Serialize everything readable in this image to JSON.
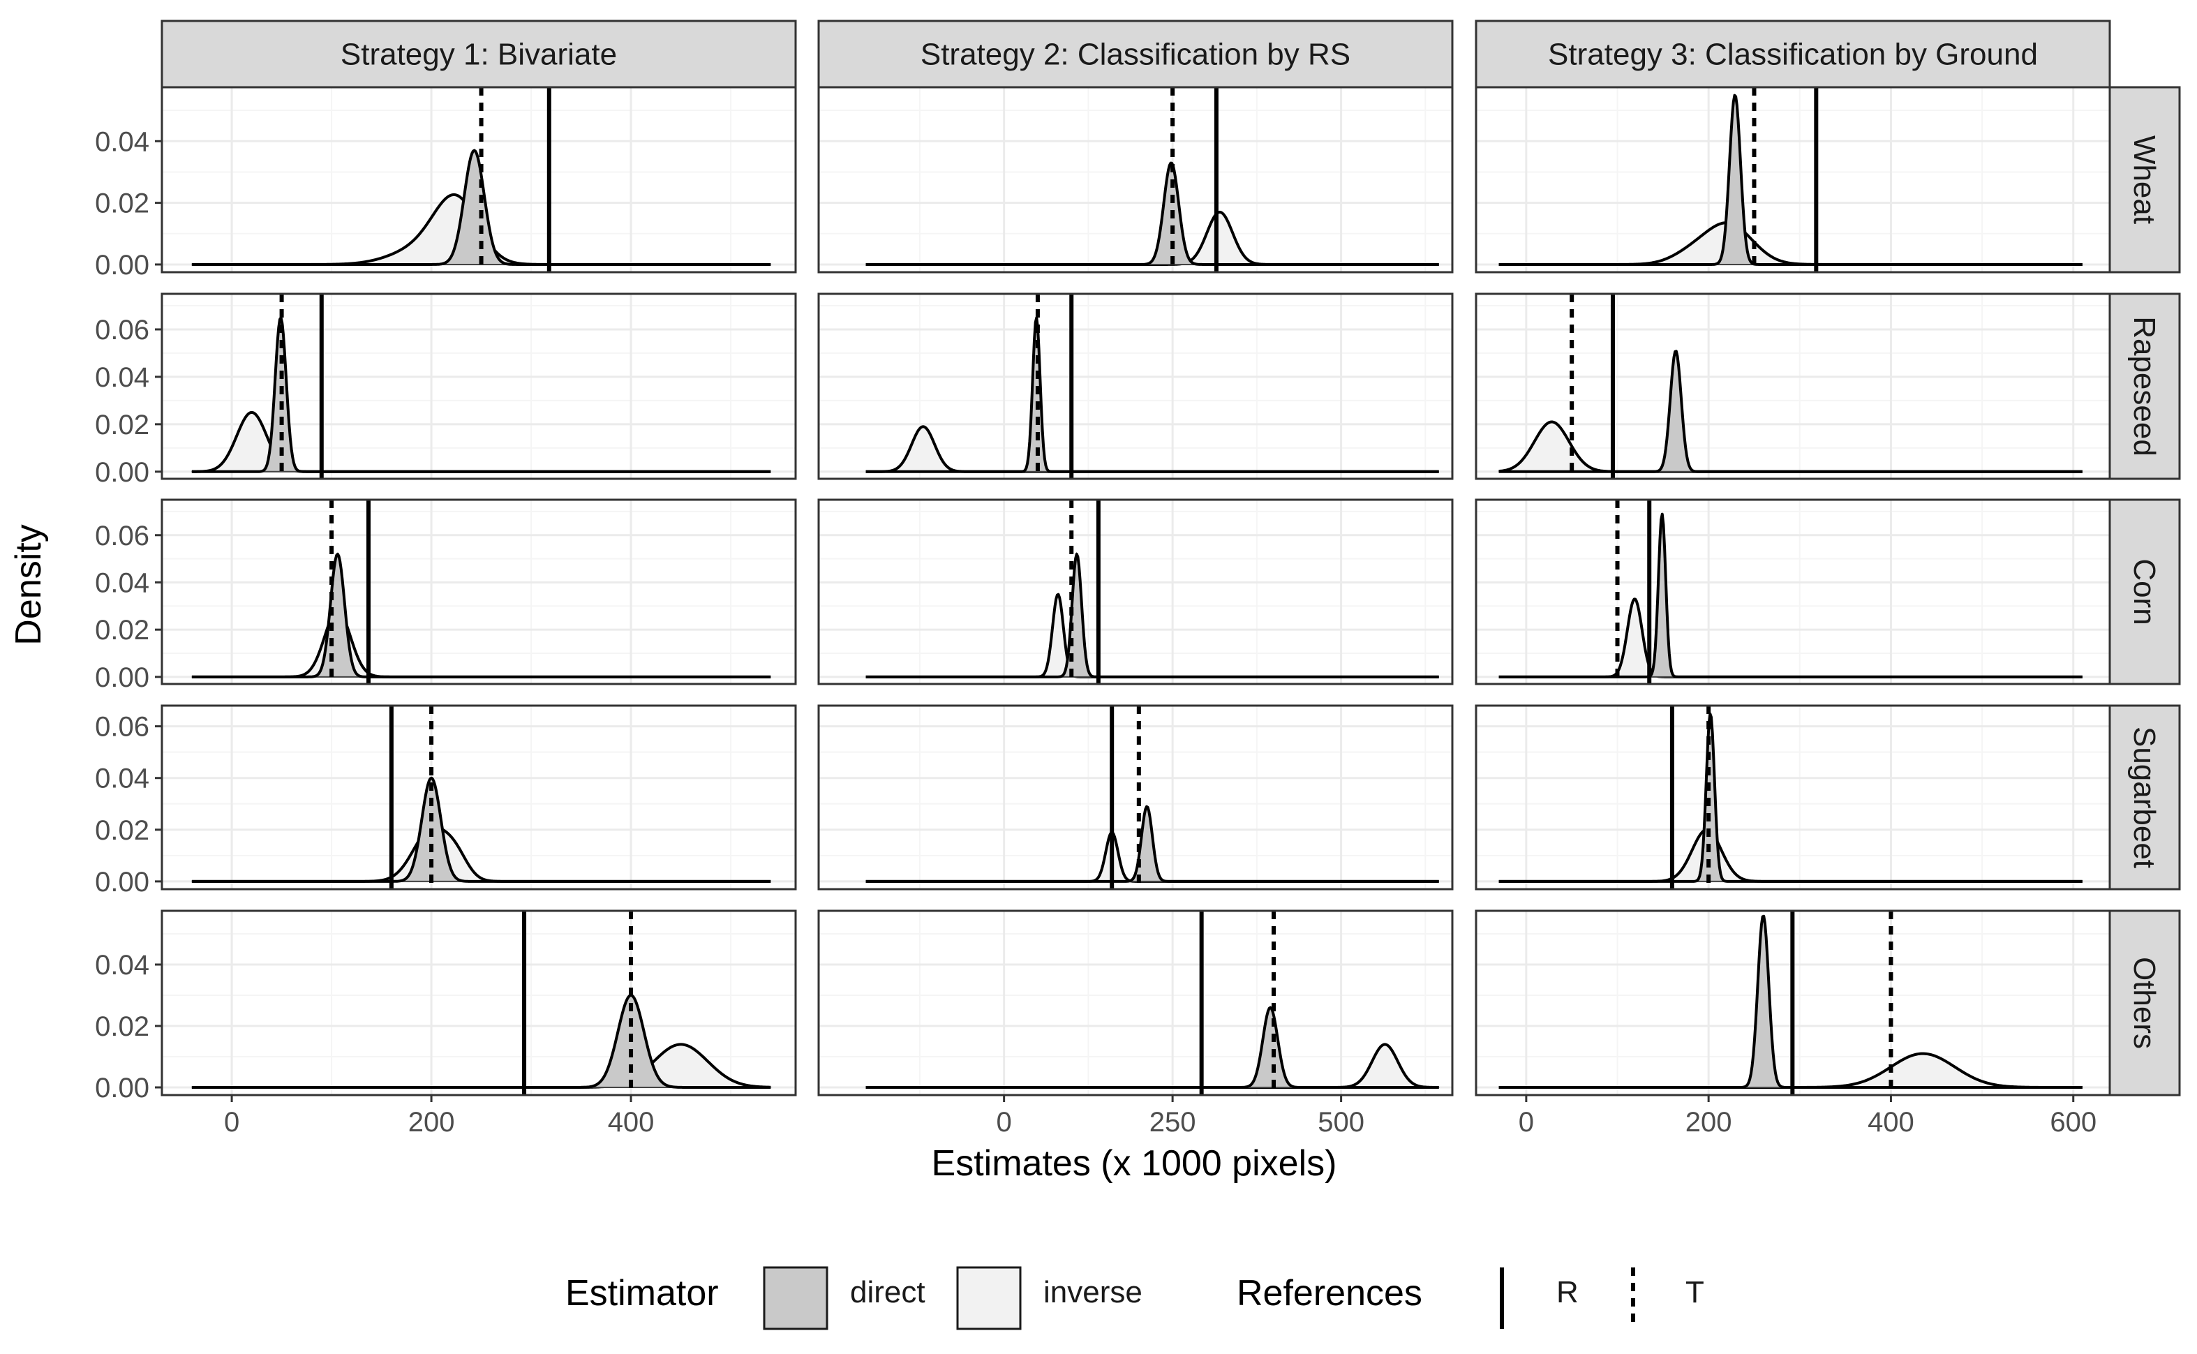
{
  "chart_data": {
    "type": "density-facet",
    "ylabel": "Density",
    "xlabel": "Estimates (x 1000 pixels)",
    "strategies": [
      {
        "name": "Strategy 1: Bivariate",
        "xlim": [
          -70,
          565
        ],
        "xticks": [
          0,
          200,
          400
        ],
        "xtick_labels": [
          "0",
          "200",
          "400"
        ]
      },
      {
        "name": "Strategy 2: Classification by RS",
        "xlim": [
          -275,
          665
        ],
        "xticks": [
          0,
          250,
          500
        ],
        "xtick_labels": [
          "0",
          "250",
          "500"
        ]
      },
      {
        "name": "Strategy 3: Classification by Ground",
        "xlim": [
          -55,
          640
        ],
        "xticks": [
          0,
          200,
          400,
          600
        ],
        "xtick_labels": [
          "0",
          "200",
          "400",
          "600"
        ]
      }
    ],
    "crops": [
      {
        "name": "Wheat",
        "ylim": [
          -0.0025,
          0.0575
        ],
        "yticks": [
          0,
          0.02,
          0.04
        ],
        "ytick_labels": [
          "0.00",
          "0.02",
          "0.04"
        ]
      },
      {
        "name": "Rapeseed",
        "ylim": [
          -0.003,
          0.075
        ],
        "yticks": [
          0,
          0.02,
          0.04,
          0.06
        ],
        "ytick_labels": [
          "0.00",
          "0.02",
          "0.04",
          "0.06"
        ]
      },
      {
        "name": "Corn",
        "ylim": [
          -0.003,
          0.075
        ],
        "yticks": [
          0,
          0.02,
          0.04,
          0.06
        ],
        "ytick_labels": [
          "0.00",
          "0.02",
          "0.04",
          "0.06"
        ]
      },
      {
        "name": "Sugarbeet",
        "ylim": [
          -0.003,
          0.068
        ],
        "yticks": [
          0,
          0.02,
          0.04,
          0.06
        ],
        "ytick_labels": [
          "0.00",
          "0.02",
          "0.04",
          "0.06"
        ]
      },
      {
        "name": "Others",
        "ylim": [
          -0.0025,
          0.0575
        ],
        "yticks": [
          0,
          0.02,
          0.04
        ],
        "ytick_labels": [
          "0.00",
          "0.02",
          "0.04"
        ]
      }
    ],
    "panels": [
      [
        {
          "R": 318,
          "T": 250,
          "xrange": [
            -40,
            540
          ],
          "direct": {
            "mean": 243,
            "sd": 10,
            "peak": 0.037
          },
          "inverse": {
            "mean": 225,
            "sd": 22,
            "peak": 0.02,
            "extra": [
              {
                "mean": 190,
                "sd": 30,
                "peak": 0.005
              }
            ]
          }
        },
        {
          "R": 90,
          "T": 50,
          "xrange": [
            -40,
            540
          ],
          "direct": {
            "mean": 49,
            "sd": 5.5,
            "peak": 0.065
          },
          "inverse": {
            "mean": 20,
            "sd": 15,
            "peak": 0.025
          }
        },
        {
          "R": 137,
          "T": 100,
          "xrange": [
            -40,
            540
          ],
          "direct": {
            "mean": 106,
            "sd": 7,
            "peak": 0.052
          },
          "inverse": {
            "mean": 106,
            "sd": 13,
            "peak": 0.028
          }
        },
        {
          "R": 160,
          "T": 200,
          "xrange": [
            -40,
            540
          ],
          "direct": {
            "mean": 200,
            "sd": 9.5,
            "peak": 0.04
          },
          "inverse": {
            "mean": 200,
            "sd": 18,
            "peak": 0.02,
            "extra": [
              {
                "mean": 225,
                "sd": 12,
                "peak": 0.007
              }
            ]
          }
        },
        {
          "R": 293,
          "T": 400,
          "xrange": [
            -40,
            540
          ],
          "direct": {
            "mean": 400,
            "sd": 13,
            "peak": 0.03
          },
          "inverse": {
            "mean": 450,
            "sd": 27,
            "peak": 0.014
          }
        }
      ],
      [
        {
          "R": 315,
          "T": 250,
          "xrange": [
            -205,
            645
          ],
          "direct": {
            "mean": 248,
            "sd": 11,
            "peak": 0.033
          },
          "inverse": {
            "mean": 320,
            "sd": 19,
            "peak": 0.017
          }
        },
        {
          "R": 100,
          "T": 50,
          "xrange": [
            -205,
            645
          ],
          "direct": {
            "mean": 48,
            "sd": 5.5,
            "peak": 0.065
          },
          "inverse": {
            "mean": -120,
            "sd": 17,
            "peak": 0.019
          }
        },
        {
          "R": 140,
          "T": 100,
          "xrange": [
            -205,
            645
          ],
          "direct": {
            "mean": 108,
            "sd": 7,
            "peak": 0.052
          },
          "inverse": {
            "mean": 80,
            "sd": 8,
            "peak": 0.035
          }
        },
        {
          "R": 160,
          "T": 200,
          "xrange": [
            -205,
            645
          ],
          "direct": {
            "mean": 212,
            "sd": 8,
            "peak": 0.029
          },
          "inverse": {
            "mean": 160,
            "sd": 9,
            "peak": 0.019
          }
        },
        {
          "R": 293,
          "T": 400,
          "xrange": [
            -205,
            645
          ],
          "direct": {
            "mean": 395,
            "sd": 11,
            "peak": 0.026
          },
          "inverse": {
            "mean": 565,
            "sd": 19,
            "peak": 0.014
          }
        }
      ],
      [
        {
          "R": 318,
          "T": 250,
          "xrange": [
            -30,
            610
          ],
          "direct": {
            "mean": 229,
            "sd": 6,
            "peak": 0.055
          },
          "inverse": {
            "mean": 222,
            "sd": 26,
            "peak": 0.013,
            "extra": [
              {
                "mean": 180,
                "sd": 22,
                "peak": 0.003
              }
            ]
          }
        },
        {
          "R": 95,
          "T": 50,
          "xrange": [
            -30,
            610
          ],
          "direct": {
            "mean": 164,
            "sd": 6,
            "peak": 0.051
          },
          "inverse": {
            "mean": 28,
            "sd": 19,
            "peak": 0.021
          }
        },
        {
          "R": 135,
          "T": 100,
          "xrange": [
            -30,
            610
          ],
          "direct": {
            "mean": 149,
            "sd": 4,
            "peak": 0.069
          },
          "inverse": {
            "mean": 119,
            "sd": 8,
            "peak": 0.033
          }
        },
        {
          "R": 160,
          "T": 200,
          "xrange": [
            -30,
            610
          ],
          "direct": {
            "mean": 202,
            "sd": 4.5,
            "peak": 0.065
          },
          "inverse": {
            "mean": 198,
            "sd": 16,
            "peak": 0.02
          }
        },
        {
          "R": 292,
          "T": 400,
          "xrange": [
            -30,
            610
          ],
          "direct": {
            "mean": 260,
            "sd": 6,
            "peak": 0.056
          },
          "inverse": {
            "mean": 435,
            "sd": 35,
            "peak": 0.011
          }
        }
      ]
    ],
    "legend": {
      "estimator_title": "Estimator",
      "estimator_items": [
        "direct",
        "inverse"
      ],
      "references_title": "References",
      "reference_items": [
        "R",
        "T"
      ]
    },
    "colors": {
      "direct_fill": "#c9c9c9",
      "inverse_fill": "#f2f2f2",
      "inverse_border": "#bdbdbd",
      "strip_bg": "#d9d9d9",
      "grid_major": "#ebebeb",
      "grid_minor": "#f5f5f5",
      "panel_border": "#333333",
      "tick_color": "#333333"
    }
  }
}
